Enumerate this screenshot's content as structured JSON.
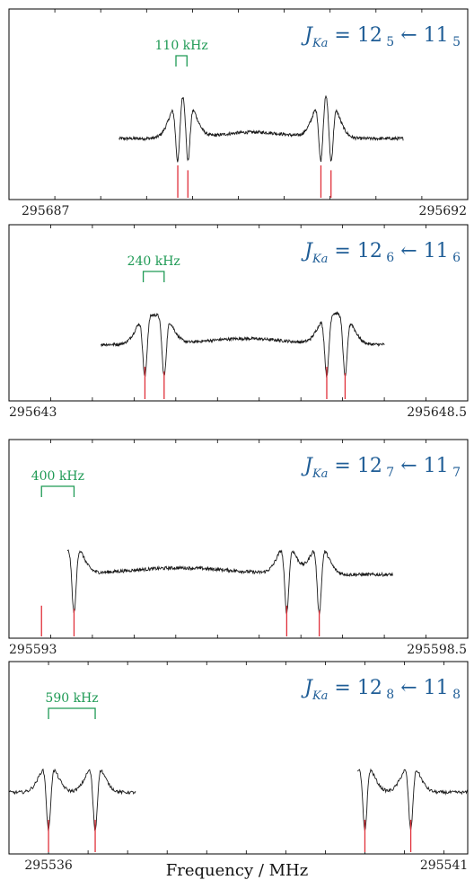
{
  "colors": {
    "spectrum": "#1a1a1a",
    "stick": "#e0303a",
    "splitting_label": "#1f9a55",
    "transition_label": "#1f5d96",
    "frame": "#000000"
  },
  "xlabel": "Frequency / MHz",
  "chart_data": [
    {
      "type": "line",
      "xlim": [
        295687,
        295692
      ],
      "tick_labels": [
        "295687",
        "295692"
      ],
      "minor_tick_step": 0.5,
      "splitting_label": "110 kHz",
      "splitting_bracket": [
        295688.82,
        295688.94
      ],
      "transition": {
        "J": "J",
        "sub": "Ka",
        "upper": "12",
        "upper_sub": "5",
        "arrow": "←",
        "lower": "11",
        "lower_sub": "5"
      },
      "spectrum_range": [
        295688.2,
        295691.3
      ],
      "doublets": [
        {
          "lines": [
            295688.84,
            295688.95
          ],
          "stick_heights": [
            1.0,
            0.85
          ]
        },
        {
          "lines": [
            295690.4,
            295690.51
          ],
          "stick_heights": [
            1.0,
            0.85
          ]
        }
      ]
    },
    {
      "type": "line",
      "xlim": [
        295643,
        295648.5
      ],
      "tick_labels": [
        "295643",
        "295648.5"
      ],
      "minor_tick_step": 0.5,
      "splitting_label": "240 kHz",
      "splitting_bracket": [
        295644.61,
        295644.86
      ],
      "transition": {
        "J": "J",
        "sub": "Ka",
        "upper": "12",
        "upper_sub": "6",
        "arrow": "←",
        "lower": "11",
        "lower_sub": "6"
      },
      "spectrum_range": [
        295644.1,
        295647.5
      ],
      "doublets": [
        {
          "lines": [
            295644.63,
            295644.86
          ],
          "stick_heights": [
            1.0,
            0.85
          ]
        },
        {
          "lines": [
            295646.81,
            295647.03
          ],
          "stick_heights": [
            1.0,
            0.8
          ]
        }
      ]
    },
    {
      "type": "line",
      "xlim": [
        295593,
        295598.5
      ],
      "tick_labels": [
        "295593",
        "295598.5"
      ],
      "minor_tick_step": 0.5,
      "splitting_label": "400 kHz",
      "splitting_bracket": [
        295593.39,
        295593.78
      ],
      "transition": {
        "J": "J",
        "sub": "Ka",
        "upper": "12",
        "upper_sub": "7",
        "arrow": "←",
        "lower": "11",
        "lower_sub": "7"
      },
      "spectrum_range": [
        295593.7,
        295597.6
      ],
      "doublets": [
        {
          "lines": [
            295593.39,
            295593.78
          ],
          "stick_heights": [
            0.95,
            0.85
          ]
        },
        {
          "lines": [
            295596.33,
            295596.72
          ],
          "stick_heights": [
            0.95,
            0.8
          ]
        }
      ]
    },
    {
      "type": "line",
      "xlim": [
        295535.5,
        295541.3
      ],
      "tick_labels": [
        "295536",
        "295541"
      ],
      "tick_label_positions": [
        295536,
        295541
      ],
      "minor_tick_step": 0.5,
      "splitting_label": "590 kHz",
      "splitting_bracket": [
        295536.0,
        295536.59
      ],
      "transition": {
        "J": "J",
        "sub": "Ka",
        "upper": "12",
        "upper_sub": "8",
        "arrow": "←",
        "lower": "11",
        "lower_sub": "8"
      },
      "spectrum_range": [
        295535.5,
        295541.3
      ],
      "spectrum_gap": [
        295537.1,
        295539.9
      ],
      "doublets": [
        {
          "lines": [
            295536.0,
            295536.59
          ],
          "stick_heights": [
            1.0,
            1.0
          ]
        },
        {
          "lines": [
            295540.0,
            295540.58
          ],
          "stick_heights": [
            1.0,
            1.0
          ]
        }
      ]
    }
  ]
}
